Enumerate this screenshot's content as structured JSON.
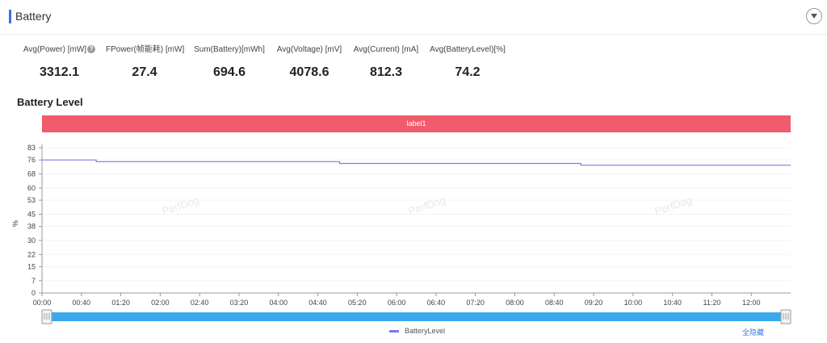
{
  "header": {
    "title": "Battery"
  },
  "stats": [
    {
      "label": "Avg(Power) [mW]",
      "value": "3312.1",
      "help": true
    },
    {
      "label": "FPower(帧能耗) [mW]",
      "value": "27.4"
    },
    {
      "label": "Sum(Battery)[mWh]",
      "value": "694.6"
    },
    {
      "label": "Avg(Voltage) [mV]",
      "value": "4078.6"
    },
    {
      "label": "Avg(Current) [mA]",
      "value": "812.3"
    },
    {
      "label": "Avg(BatteryLevel)[%]",
      "value": "74.2"
    }
  ],
  "section_title": "Battery Level",
  "label_bar": "label1",
  "watermark": "PerfDog",
  "legend_label": "BatteryLevel",
  "hide_all_label": "全隐藏",
  "colors": {
    "series": "#7b7be0",
    "label_bar": "#f05c6b",
    "slider": "#3aa9ec",
    "accent": "#3b6fe0",
    "link": "#3b7ddd"
  },
  "chart_data": {
    "type": "line",
    "ylabel": "%",
    "yticks": [
      0,
      7,
      15,
      22,
      30,
      38,
      45,
      53,
      60,
      68,
      76,
      83
    ],
    "ylim": [
      0,
      83
    ],
    "xticks": [
      "00:00",
      "00:40",
      "01:20",
      "02:00",
      "02:40",
      "03:20",
      "04:00",
      "04:40",
      "05:20",
      "06:00",
      "06:40",
      "07:20",
      "08:00",
      "08:40",
      "09:20",
      "10:00",
      "10:40",
      "11:20",
      "12:00"
    ],
    "xlim_minutes": [
      0,
      760
    ],
    "series": [
      {
        "name": "BatteryLevel",
        "x_minutes": [
          0,
          55,
          55,
          302,
          302,
          547,
          547,
          760
        ],
        "y": [
          76,
          76,
          75,
          75,
          74,
          74,
          73,
          73
        ]
      }
    ]
  }
}
